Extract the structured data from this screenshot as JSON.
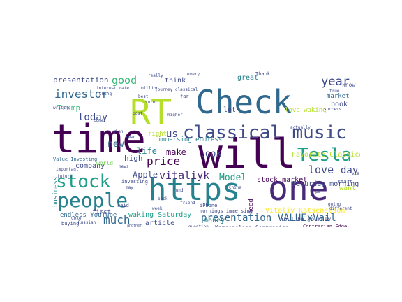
{
  "palette": {
    "dark_purple": "#440154",
    "purple": "#482878",
    "indigo": "#3e4a89",
    "blue": "#31688e",
    "teal": "#26828e",
    "green_teal": "#1f9e89",
    "green": "#35b779",
    "light_green": "#6ece58",
    "yellow_green": "#b5de2b",
    "yellow": "#fde725"
  },
  "words": [
    {
      "text": "time",
      "color": "dark_purple"
    },
    {
      "text": "will",
      "color": "dark_purple"
    },
    {
      "text": "Check",
      "color": "blue"
    },
    {
      "text": "RT",
      "color": "yellow_green"
    },
    {
      "text": "https",
      "color": "teal"
    },
    {
      "text": "one",
      "color": "purple"
    },
    {
      "text": "classical music",
      "color": "indigo"
    },
    {
      "text": "people",
      "color": "teal"
    },
    {
      "text": "stock",
      "color": "green_teal"
    },
    {
      "text": "Tesla",
      "color": "green_teal"
    },
    {
      "text": "presentation VALUExVail",
      "color": "blue"
    },
    {
      "text": "year",
      "color": "indigo"
    },
    {
      "text": "investor",
      "color": "blue"
    },
    {
      "text": "good",
      "color": "green"
    },
    {
      "text": "price",
      "color": "dark_purple"
    },
    {
      "text": "vitaliyk",
      "color": "purple"
    },
    {
      "text": "much",
      "color": "blue"
    },
    {
      "text": "today",
      "color": "indigo"
    },
    {
      "text": "new",
      "color": "blue"
    },
    {
      "text": "love",
      "color": "indigo"
    },
    {
      "text": "day",
      "color": "indigo"
    },
    {
      "text": "look",
      "color": "indigo"
    },
    {
      "text": "us",
      "color": "indigo"
    },
    {
      "text": "Model",
      "color": "green_teal"
    },
    {
      "text": "Apple",
      "color": "indigo"
    },
    {
      "text": "make",
      "color": "dark_purple"
    },
    {
      "text": "life",
      "color": "teal"
    },
    {
      "text": "presentation",
      "color": "indigo"
    },
    {
      "text": "Favorite Classical",
      "color": "yellow_green"
    },
    {
      "text": "Saturday morning",
      "color": "indigo"
    },
    {
      "text": "stock market",
      "color": "dark_purple"
    },
    {
      "text": "Vitaliy Katsenelson",
      "color": "yellow"
    },
    {
      "text": "Katsenelson Contrarian",
      "color": "indigo"
    },
    {
      "text": "endless YouTube",
      "color": "blue"
    },
    {
      "text": "waking Saturday",
      "color": "green_teal"
    },
    {
      "text": "money",
      "color": "teal"
    },
    {
      "text": "article",
      "color": "indigo"
    },
    {
      "text": "company",
      "color": "indigo"
    },
    {
      "text": "Trump",
      "color": "green"
    },
    {
      "text": "book",
      "color": "indigo"
    },
    {
      "text": "lot",
      "color": "indigo"
    },
    {
      "text": "great",
      "color": "teal"
    },
    {
      "text": "think",
      "color": "indigo"
    },
    {
      "text": "want",
      "color": "yellow_green"
    },
    {
      "text": "love waking",
      "color": "yellow_green"
    },
    {
      "text": "market",
      "color": "blue"
    },
    {
      "text": "immersing endless",
      "color": "teal"
    },
    {
      "text": "right",
      "color": "yellow_green"
    },
    {
      "text": "high",
      "color": "indigo"
    },
    {
      "text": "first",
      "color": "indigo"
    },
    {
      "text": "business",
      "color": "teal"
    },
    {
      "text": "YouTube journey",
      "color": "indigo"
    },
    {
      "text": "Contrarian Edge",
      "color": "dark_purple"
    },
    {
      "text": "mornings immersing",
      "color": "indigo"
    },
    {
      "text": "need",
      "color": "dark_purple"
    },
    {
      "text": "know",
      "color": "indigo"
    },
    {
      "text": "iPhone",
      "color": "indigo"
    },
    {
      "text": "Value Investing",
      "color": "blue"
    },
    {
      "text": "investing",
      "color": "indigo"
    },
    {
      "text": "world",
      "color": "light_green"
    },
    {
      "text": "Thank",
      "color": "indigo"
    },
    {
      "text": "start",
      "color": "indigo"
    },
    {
      "text": "really",
      "color": "indigo"
    },
    {
      "text": "every",
      "color": "indigo"
    },
    {
      "text": "buying",
      "color": "indigo"
    },
    {
      "text": "said",
      "color": "indigo"
    },
    {
      "text": "question",
      "color": "indigo"
    },
    {
      "text": "journey classical",
      "color": "indigo"
    },
    {
      "text": "Russian",
      "color": "indigo"
    },
    {
      "text": "going",
      "color": "indigo"
    },
    {
      "text": "writing",
      "color": "indigo"
    },
    {
      "text": "important",
      "color": "indigo"
    },
    {
      "text": "future",
      "color": "indigo"
    },
    {
      "text": "China",
      "color": "indigo"
    },
    {
      "text": "Coke",
      "color": "indigo"
    },
    {
      "text": "interest rate",
      "color": "indigo"
    },
    {
      "text": "far",
      "color": "indigo"
    },
    {
      "text": "true",
      "color": "indigo"
    },
    {
      "text": "without",
      "color": "indigo"
    },
    {
      "text": "actually",
      "color": "indigo"
    },
    {
      "text": "thing",
      "color": "indigo"
    },
    {
      "text": "success",
      "color": "indigo"
    },
    {
      "text": "different",
      "color": "indigo"
    },
    {
      "text": "friend",
      "color": "indigo"
    },
    {
      "text": "higher",
      "color": "indigo"
    },
    {
      "text": "million",
      "color": "indigo"
    },
    {
      "text": "cost",
      "color": "indigo"
    },
    {
      "text": "best",
      "color": "indigo"
    },
    {
      "text": "come",
      "color": "indigo"
    },
    {
      "text": "better",
      "color": "indigo"
    },
    {
      "text": "another",
      "color": "indigo"
    },
    {
      "text": "pm",
      "color": "indigo"
    },
    {
      "text": "via",
      "color": "indigo"
    },
    {
      "text": "news",
      "color": "indigo"
    },
    {
      "text": "may",
      "color": "indigo"
    },
    {
      "text": "fund",
      "color": "indigo"
    },
    {
      "text": "sure",
      "color": "indigo"
    },
    {
      "text": "week",
      "color": "indigo"
    },
    {
      "text": "plan",
      "color": "indigo"
    },
    {
      "text": "read",
      "color": "indigo"
    },
    {
      "text": "back",
      "color": "indigo"
    }
  ]
}
